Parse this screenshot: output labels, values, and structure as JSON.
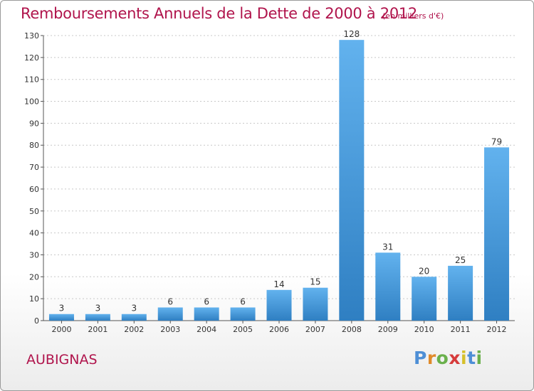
{
  "chart_data": {
    "type": "bar",
    "title": "Remboursements Annuels de la Dette de 2000 à 2012",
    "unit_note": "(en milliers d'€)",
    "categories": [
      "2000",
      "2001",
      "2002",
      "2003",
      "2004",
      "2005",
      "2006",
      "2007",
      "2008",
      "2009",
      "2010",
      "2011",
      "2012"
    ],
    "values": [
      3,
      3,
      3,
      6,
      6,
      6,
      14,
      15,
      128,
      31,
      20,
      25,
      79
    ],
    "ylim": [
      0,
      130
    ],
    "yticks": [
      0,
      10,
      20,
      30,
      40,
      50,
      60,
      70,
      80,
      90,
      100,
      110,
      120,
      130
    ],
    "grid": "horizontal-dotted",
    "bar_color": "#4a9fe0",
    "data_labels": true
  },
  "commune": "AUBIGNAS",
  "brand": {
    "letters": [
      "P",
      "r",
      "o",
      "x",
      "i",
      "t",
      "i"
    ],
    "colors": [
      "#4e8fd6",
      "#e08a2a",
      "#6ab04c",
      "#d63b3b",
      "#d6c02a",
      "#4e8fd6",
      "#6ab04c"
    ]
  },
  "colors": {
    "title": "#b0144c",
    "axis": "#333333"
  }
}
